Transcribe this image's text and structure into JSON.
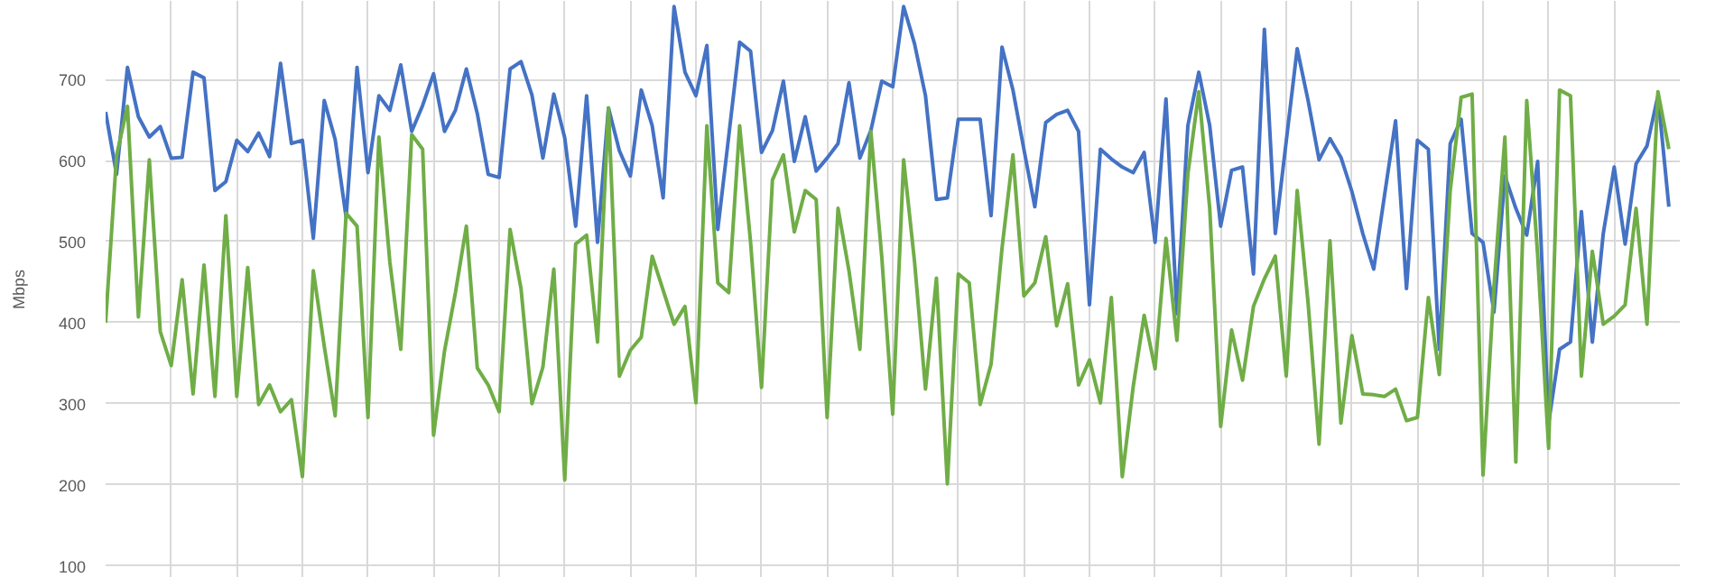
{
  "chart_data": {
    "type": "line",
    "ylabel": "Mbps",
    "ylim": [
      85,
      797
    ],
    "yticks": [
      100,
      200,
      300,
      400,
      500,
      600,
      700
    ],
    "tick_labels": "y",
    "grid": true,
    "line_style": "solid",
    "categories": [
      null,
      null,
      null,
      null,
      null,
      null,
      null,
      null,
      null,
      null,
      null,
      null,
      null,
      null,
      null,
      null,
      null,
      null,
      null,
      null,
      null,
      null,
      null,
      null,
      null,
      null,
      null,
      null,
      null,
      null,
      null,
      null,
      null,
      null,
      null,
      null,
      null,
      null,
      null,
      null,
      null,
      null,
      null,
      null,
      null,
      null,
      null,
      null,
      null,
      null,
      null,
      null,
      null,
      null,
      null,
      null,
      null,
      null,
      null,
      null,
      null,
      null,
      null,
      null,
      null,
      null,
      null,
      null,
      null,
      null,
      null,
      null,
      null,
      null,
      null,
      null,
      null,
      null,
      null,
      null,
      null,
      null,
      null,
      null,
      null,
      null,
      null,
      null,
      null,
      null,
      null,
      null,
      null,
      null,
      null,
      null,
      null,
      null,
      null,
      null,
      null,
      null,
      null,
      null,
      null,
      null,
      null,
      null,
      null,
      null,
      null,
      null,
      null,
      null,
      null,
      null,
      null,
      null,
      null,
      null,
      null,
      null,
      null,
      null,
      null,
      null,
      null,
      null,
      null,
      null,
      null,
      null,
      null,
      null,
      null,
      null,
      null,
      null,
      null,
      null,
      null,
      null,
      null,
      null
    ],
    "series": [
      {
        "color": "#4472c4",
        "values": [
          660,
          583,
          715,
          654,
          629,
          642,
          603,
          604,
          709,
          702,
          563,
          574,
          625,
          611,
          634,
          605,
          720,
          621,
          625,
          504,
          674,
          626,
          530,
          715,
          585,
          680,
          662,
          718,
          636,
          668,
          707,
          636,
          662,
          713,
          658,
          583,
          579,
          713,
          722,
          681,
          603,
          682,
          628,
          519,
          680,
          499,
          665,
          612,
          581,
          687,
          643,
          554,
          790,
          709,
          680,
          742,
          515,
          630,
          746,
          735,
          610,
          637,
          698,
          599,
          654,
          587,
          603,
          621,
          696,
          603,
          637,
          698,
          691,
          790,
          744,
          680,
          552,
          554,
          651,
          651,
          651,
          532,
          740,
          687,
          614,
          543,
          647,
          657,
          662,
          636,
          422,
          614,
          602,
          592,
          585,
          610,
          499,
          676,
          411,
          643,
          709,
          643,
          519,
          588,
          592,
          460,
          762,
          510,
          624,
          738,
          674,
          601,
          627,
          604,
          562,
          510,
          466,
          558,
          649,
          442,
          625,
          614,
          367,
          621,
          651,
          510,
          499,
          413,
          581,
          541,
          508,
          599,
          276,
          367,
          376,
          537,
          376,
          510,
          592,
          497,
          596,
          618,
          680,
          543
        ]
      },
      {
        "color": "#70ad47",
        "values": [
          400,
          606,
          667,
          407,
          601,
          389,
          347,
          453,
          312,
          471,
          309,
          532,
          309,
          468,
          299,
          323,
          290,
          305,
          210,
          464,
          371,
          285,
          535,
          519,
          283,
          629,
          475,
          367,
          632,
          614,
          261,
          365,
          437,
          519,
          344,
          323,
          290,
          515,
          442,
          300,
          345,
          466,
          206,
          497,
          508,
          376,
          665,
          334,
          366,
          382,
          482,
          440,
          398,
          420,
          301,
          643,
          449,
          437,
          643,
          499,
          320,
          576,
          607,
          512,
          563,
          552,
          283,
          541,
          464,
          367,
          636,
          481,
          287,
          601,
          475,
          318,
          455,
          201,
          460,
          449,
          299,
          349,
          492,
          607,
          433,
          449,
          506,
          396,
          448,
          323,
          354,
          301,
          431,
          210,
          321,
          409,
          343,
          504,
          378,
          583,
          685,
          541,
          272,
          391,
          329,
          420,
          454,
          482,
          334,
          563,
          424,
          250,
          501,
          276,
          384,
          312,
          311,
          309,
          318,
          279,
          283,
          431,
          336,
          563,
          678,
          682,
          212,
          444,
          629,
          228,
          674,
          483,
          245,
          687,
          680,
          334,
          488,
          398,
          408,
          422,
          541,
          398,
          685,
          614
        ]
      }
    ]
  }
}
